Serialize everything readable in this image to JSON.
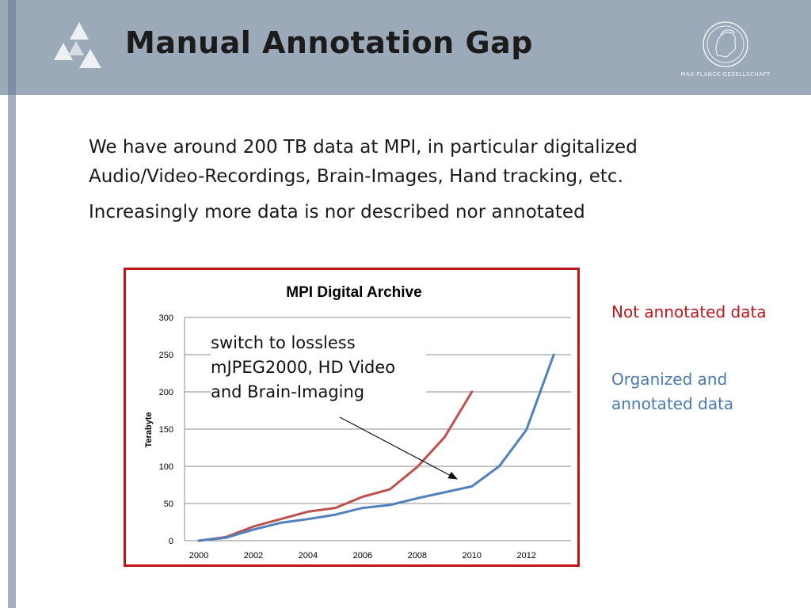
{
  "slide": {
    "title": "Manual Annotation Gap",
    "org_name": "MAX-PLANCK-GESELLSCHAFT",
    "paragraph1": "We have around 200 TB data at MPI, in particular digitalized Audio/Video-Recordings, Brain-Images, Hand tracking, etc.",
    "paragraph2": "Increasingly more data is nor described nor annotated",
    "annotation": "switch to lossless mJPEG2000, HD Video and Brain-Imaging",
    "legend_red": "Not annotated data",
    "legend_blue": "Organized and annotated data"
  },
  "colors": {
    "header_bg": "#9ca9b9",
    "chart_border": "#c0141b",
    "series_red": "#c0504d",
    "series_blue": "#4f81bd",
    "legend_red": "#c0141b",
    "legend_blue": "#4a79b0"
  },
  "chart_data": {
    "type": "line",
    "title": "MPI Digital Archive",
    "xlabel": "",
    "ylabel": "Terabyte",
    "x": [
      2000,
      2001,
      2002,
      2003,
      2004,
      2005,
      2006,
      2007,
      2008,
      2009,
      2010,
      2011,
      2012,
      2013
    ],
    "xticks": [
      2000,
      2002,
      2004,
      2006,
      2008,
      2010,
      2012
    ],
    "yticks": [
      0,
      50,
      100,
      150,
      200,
      250,
      300
    ],
    "ylim": [
      0,
      300
    ],
    "grid": true,
    "series": [
      {
        "color": "#c0504d",
        "x": [
          2000,
          2001,
          2002,
          2003,
          2004,
          2005,
          2006,
          2007,
          2008,
          2009,
          2010
        ],
        "values": [
          0,
          5,
          19,
          29,
          39,
          44,
          59,
          69,
          99,
          139,
          200
        ]
      },
      {
        "color": "#4f81bd",
        "x": [
          2000,
          2001,
          2002,
          2003,
          2004,
          2005,
          2006,
          2007,
          2008,
          2009,
          2010,
          2011,
          2012,
          2013
        ],
        "values": [
          0,
          4,
          15,
          24,
          29,
          35,
          44,
          48,
          57,
          65,
          73,
          100,
          149,
          250
        ]
      }
    ]
  }
}
